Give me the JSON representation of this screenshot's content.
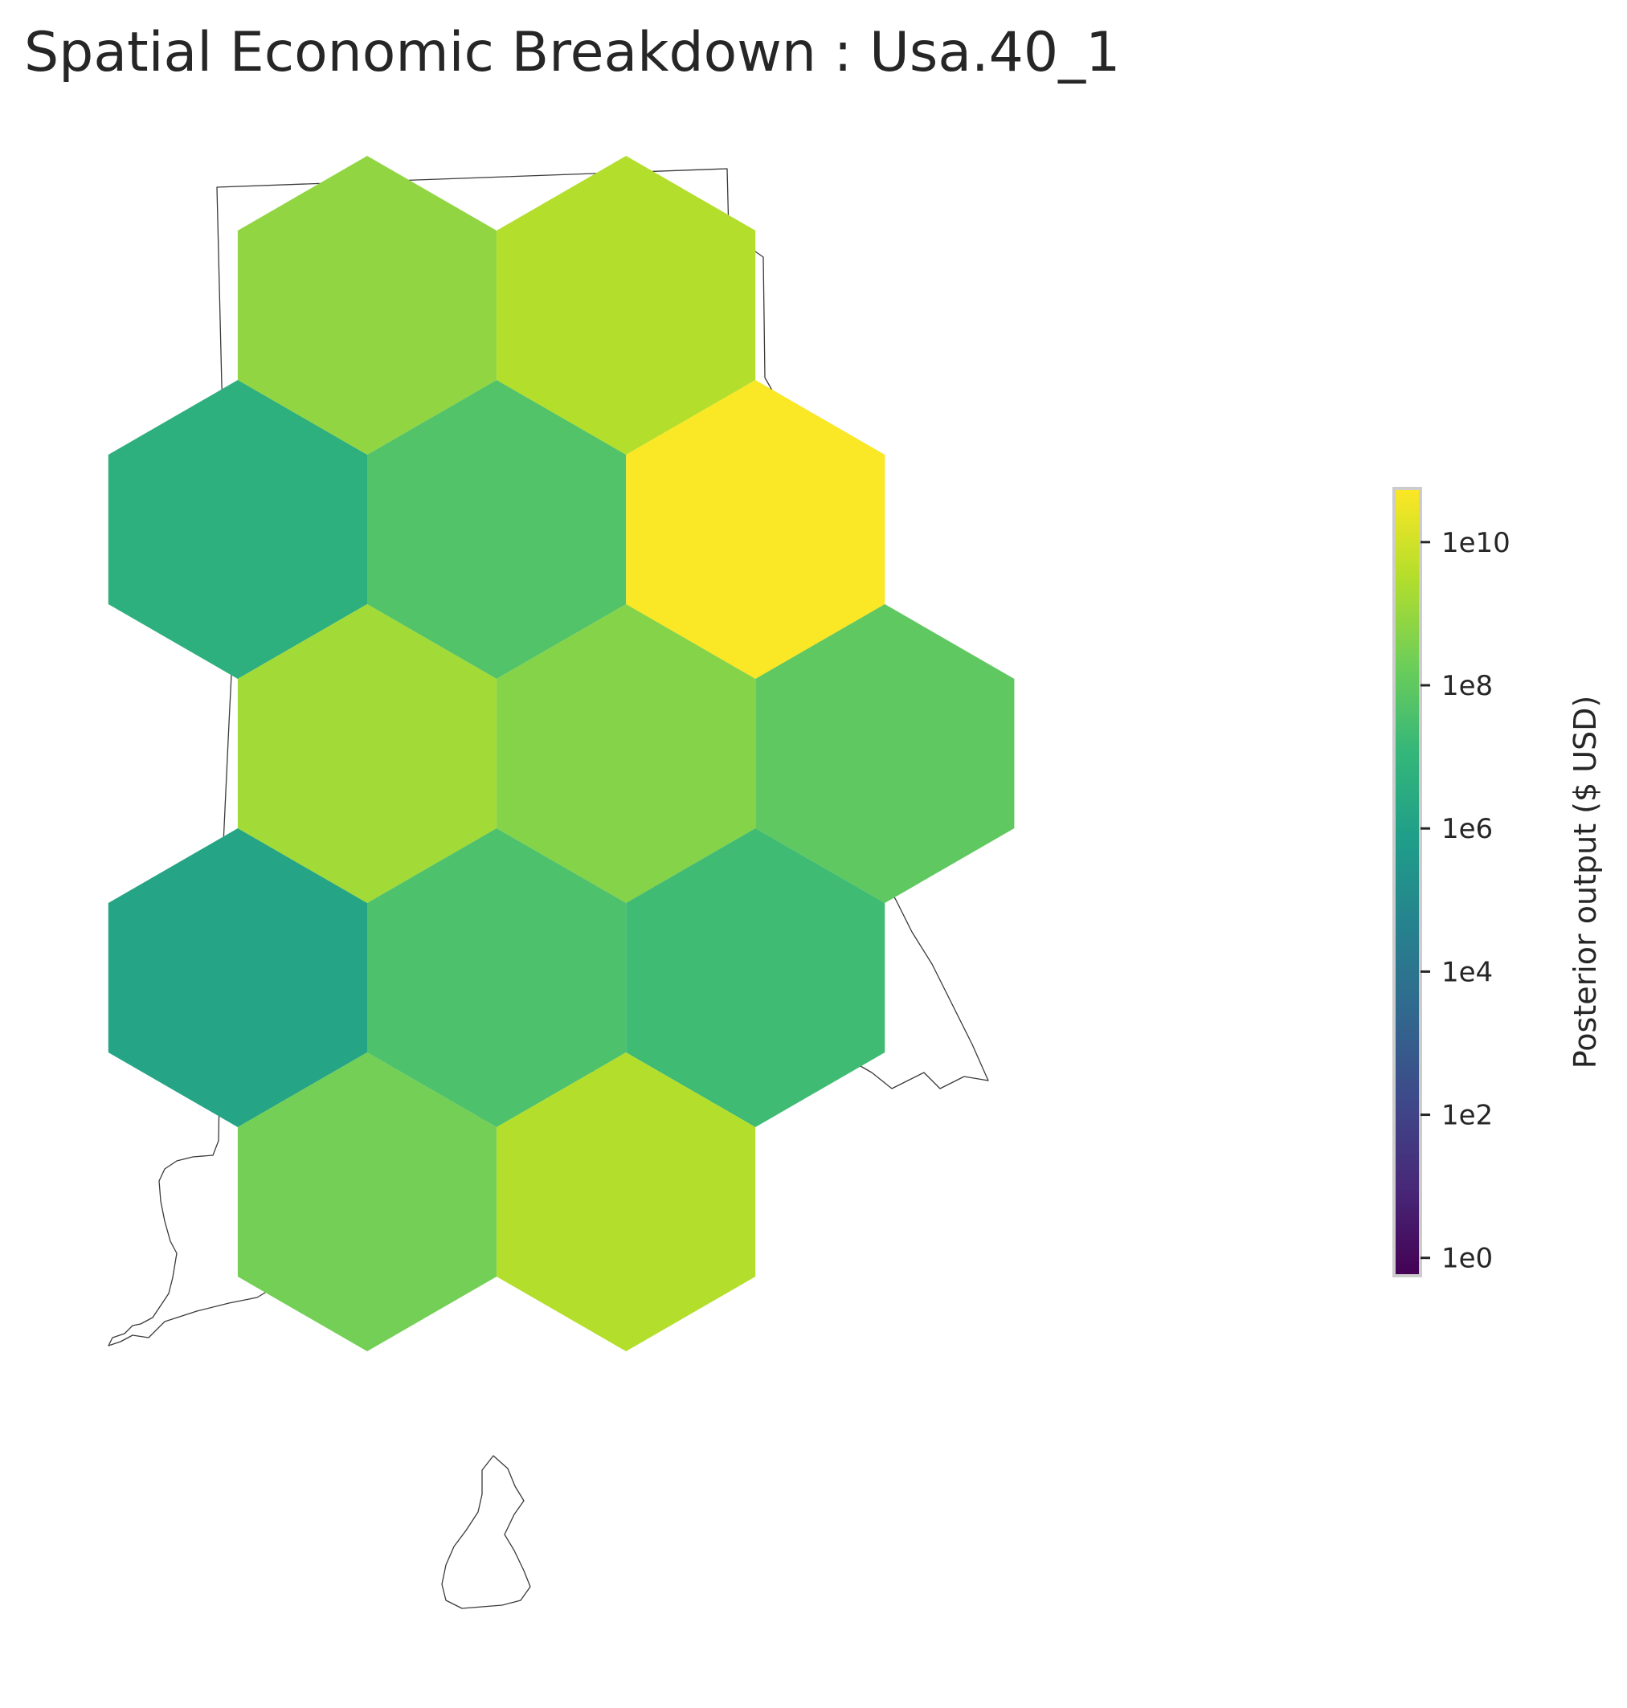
{
  "title": "Spatial Economic Breakdown : Usa.40_1",
  "colorbar": {
    "label": "Posterior output ($ USD)",
    "scale": "log10",
    "colormap": "viridis",
    "range_log10": [
      -0.25,
      10.75
    ],
    "ticks": [
      {
        "label": "1e0",
        "log10": 0
      },
      {
        "label": "1e2",
        "log10": 2
      },
      {
        "label": "1e4",
        "log10": 4
      },
      {
        "label": "1e6",
        "log10": 6
      },
      {
        "label": "1e8",
        "log10": 8
      },
      {
        "label": "1e10",
        "log10": 10
      }
    ]
  },
  "colors": {
    "viridis_stops": [
      "#440154",
      "#482878",
      "#3e4989",
      "#31688e",
      "#26828e",
      "#1f9e89",
      "#35b779",
      "#6ece58",
      "#b5de2b",
      "#fde725"
    ],
    "boundary": "#3a3a3a",
    "colorbar_frame": "#cccccc"
  },
  "chart_data": {
    "type": "heatmap",
    "geometry": "hexbin",
    "region": "Usa.40_1",
    "value_unit": "$ USD",
    "cells": [
      {
        "row": 0,
        "col": 0,
        "log10_value": 8.9
      },
      {
        "row": 0,
        "col": 1,
        "log10_value": 9.5
      },
      {
        "row": 1,
        "col": 0,
        "log10_value": 6.7
      },
      {
        "row": 1,
        "col": 1,
        "log10_value": 7.7
      },
      {
        "row": 1,
        "col": 2,
        "log10_value": 10.7
      },
      {
        "row": 2,
        "col": 0,
        "log10_value": 9.2
      },
      {
        "row": 2,
        "col": 1,
        "log10_value": 8.7
      },
      {
        "row": 2,
        "col": 2,
        "log10_value": 8.0
      },
      {
        "row": 3,
        "col": 0,
        "log10_value": 6.2
      },
      {
        "row": 3,
        "col": 1,
        "log10_value": 7.6
      },
      {
        "row": 3,
        "col": 2,
        "log10_value": 7.3
      },
      {
        "row": 4,
        "col": 0,
        "log10_value": 8.4
      },
      {
        "row": 4,
        "col": 1,
        "log10_value": 9.5
      }
    ]
  }
}
